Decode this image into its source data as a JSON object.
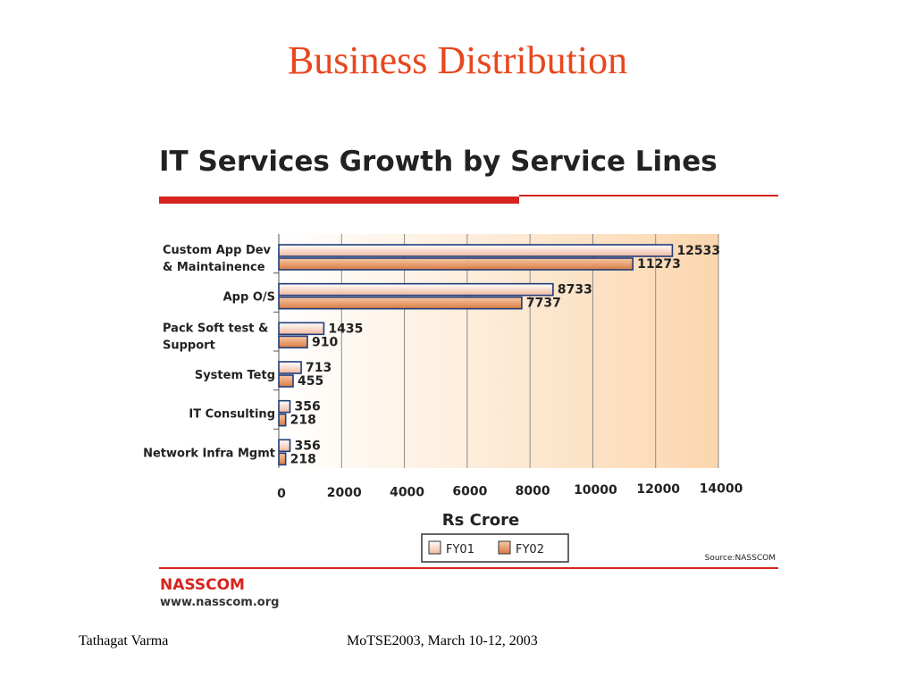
{
  "slide": {
    "title": "Business Distribution",
    "footer_author": "Tathagat Varma",
    "footer_event": "MoTSE2003, March 10-12, 2003"
  },
  "chart_data": {
    "type": "bar",
    "orientation": "horizontal",
    "title": "IT Services Growth by Service Lines",
    "xlabel": "Rs Crore",
    "ylabel": "",
    "xlim": [
      0,
      14000
    ],
    "x_ticks": [
      0,
      2000,
      4000,
      6000,
      8000,
      10000,
      12000,
      14000
    ],
    "categories": [
      [
        "Custom App Dev",
        "& Maintainence"
      ],
      [
        "App O/S"
      ],
      [
        "Pack Soft test &",
        "Support"
      ],
      [
        "System Tetg"
      ],
      [
        "IT Consulting"
      ],
      [
        "Network Infra Mgmt"
      ]
    ],
    "series": [
      {
        "name": "FY01",
        "values": [
          12533,
          8733,
          1435,
          713,
          356,
          356
        ],
        "color": "#f4c9b4"
      },
      {
        "name": "FY02",
        "values": [
          11273,
          7737,
          910,
          455,
          218,
          218
        ],
        "color": "#e08850"
      }
    ],
    "legend_position": "bottom",
    "grid": true,
    "source": "Source:NASSCOM",
    "brand": "NASSCOM",
    "brand_url": "www.nasscom.org",
    "colors": {
      "accent_red": "#e8471e",
      "bar_outline": "#1f3d7a",
      "plot_gradient_end": "#fbd6ae"
    }
  }
}
